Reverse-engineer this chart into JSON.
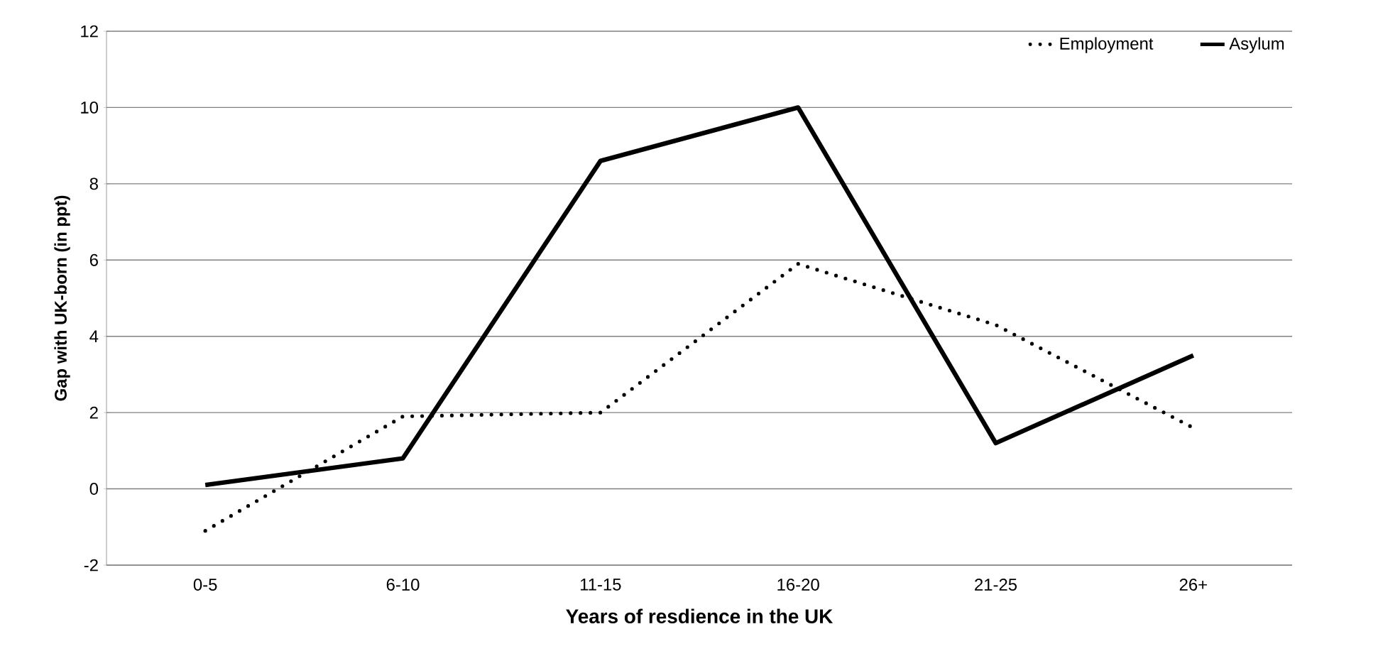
{
  "chart_data": {
    "type": "line",
    "xlabel": "Years of resdience in the UK",
    "ylabel": "Gap with UK-born (in ppt)",
    "categories": [
      "0-5",
      "6-10",
      "11-15",
      "16-20",
      "21-25",
      "26+"
    ],
    "series": [
      {
        "name": "Employment",
        "color": "#000000",
        "line_style": "dotted",
        "values": [
          -1.1,
          1.9,
          2.0,
          5.9,
          4.3,
          1.6
        ]
      },
      {
        "name": "Asylum",
        "color": "#000000",
        "line_style": "solid",
        "values": [
          0.1,
          0.8,
          8.6,
          10.0,
          1.2,
          3.5
        ]
      }
    ],
    "ylim": [
      -2,
      12
    ],
    "yticks": [
      -2,
      0,
      2,
      4,
      6,
      8,
      10,
      12
    ],
    "grid": "y",
    "legend": "top right",
    "marker": "none"
  }
}
